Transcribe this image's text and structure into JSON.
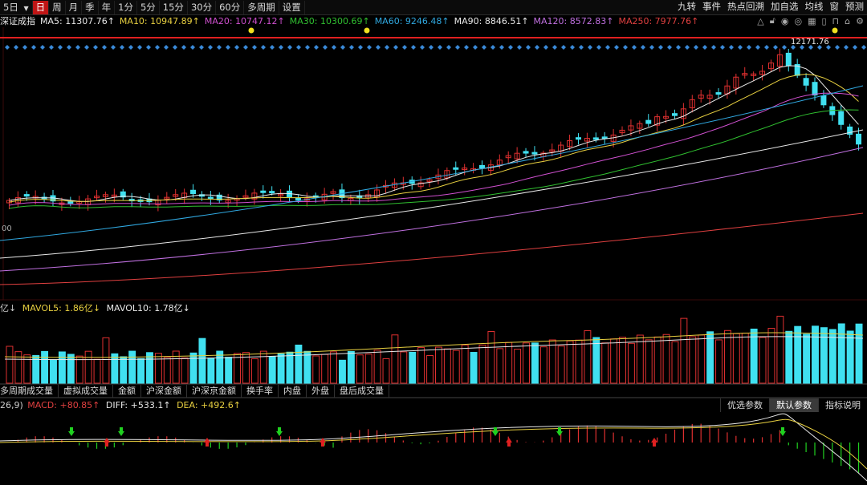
{
  "toolbar": {
    "period_dropdown": "5日",
    "periods": [
      "日",
      "周",
      "月",
      "季",
      "年",
      "1分",
      "5分",
      "15分",
      "30分",
      "60分",
      "多周期",
      "设置"
    ],
    "active_period": "日",
    "right": [
      "九转",
      "事件",
      "热点回溯",
      "加自选",
      "均线",
      "窗",
      "预测"
    ]
  },
  "ma_line": {
    "name": "深证成指",
    "items": [
      {
        "label": "MA5: 11307.76↑",
        "color": "#e8e8e8"
      },
      {
        "label": "MA10: 10947.89↑",
        "color": "#e8d040"
      },
      {
        "label": "MA20: 10747.12↑",
        "color": "#d050d0"
      },
      {
        "label": "MA30: 10300.69↑",
        "color": "#30c030"
      },
      {
        "label": "MA60: 9246.48↑",
        "color": "#30a8e0"
      },
      {
        "label": "MA90: 8846.51↑",
        "color": "#e8e8e8"
      },
      {
        "label": "MA120: 8572.83↑",
        "color": "#c070e0"
      },
      {
        "label": "MA250: 7977.76↑",
        "color": "#e04040"
      }
    ]
  },
  "price_chart": {
    "peak_label": "12171.76",
    "left_tick": "00"
  },
  "volume": {
    "prefix": "亿↓",
    "mavol5": "MAVOL5: 1.86亿↓",
    "mavol10": "MAVOL10: 1.78亿↓"
  },
  "indicator_tabs": [
    "多周期成交量",
    "虚拟成交量",
    "金额",
    "沪深金额",
    "沪深京金额",
    "换手率",
    "内盘",
    "外盘",
    "盘后成交量"
  ],
  "macd": {
    "prefix": "26,9)",
    "macd": "MACD: +80.85↑",
    "diff": "DIFF: +533.1↑",
    "dea": "DEA: +492.6↑"
  },
  "param_tabs": [
    "优选参数",
    "默认参数",
    "指标说明"
  ],
  "active_param_tab": "默认参数",
  "colors": {
    "up": "#e03030",
    "down": "#40e0f0",
    "accent": "#c01515"
  }
}
